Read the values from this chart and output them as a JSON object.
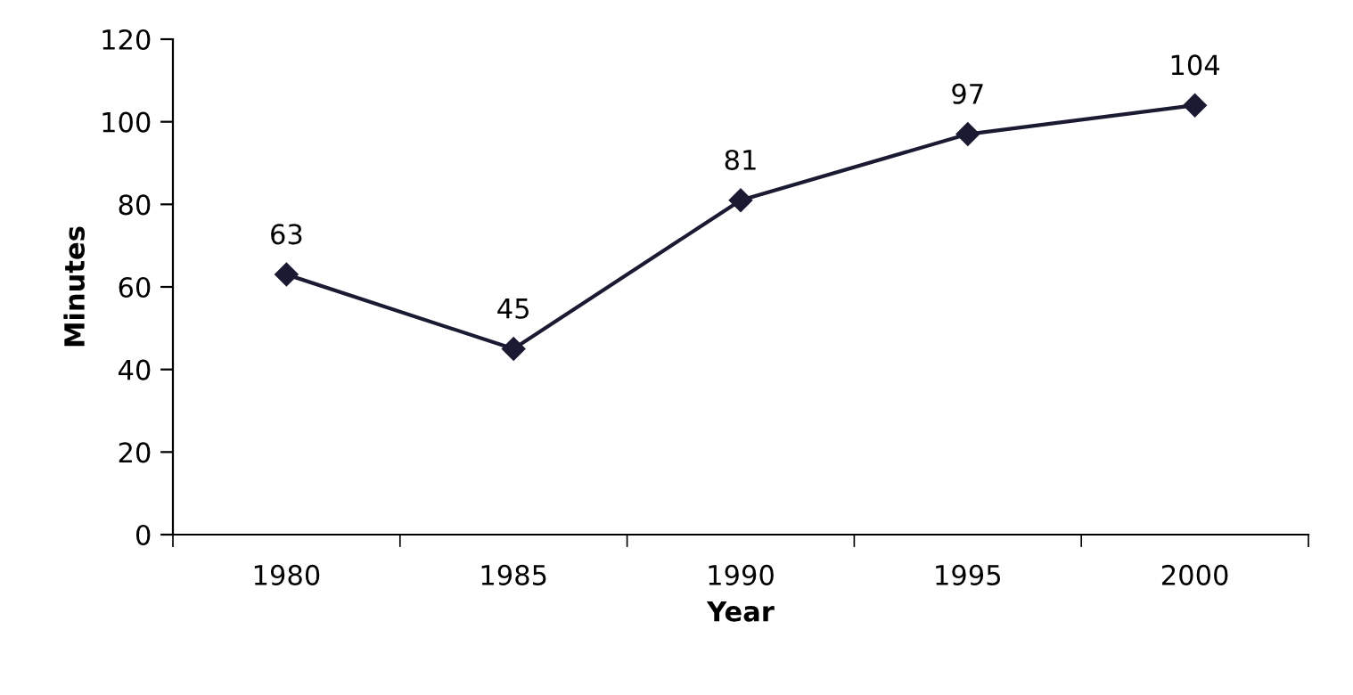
{
  "chart_data": {
    "type": "line",
    "xlabel": "Year",
    "ylabel": "Minutes",
    "categories": [
      "1980",
      "1985",
      "1990",
      "1995",
      "2000"
    ],
    "series": [
      {
        "color": "#1a1a33",
        "values": [
          63,
          45,
          81,
          97,
          104
        ]
      }
    ],
    "ylim": [
      0,
      120
    ],
    "yticks": [
      0,
      20,
      40,
      60,
      80,
      100,
      120
    ],
    "data_labels": true,
    "marker": "diamond",
    "line_style": "solid",
    "grid": false
  }
}
